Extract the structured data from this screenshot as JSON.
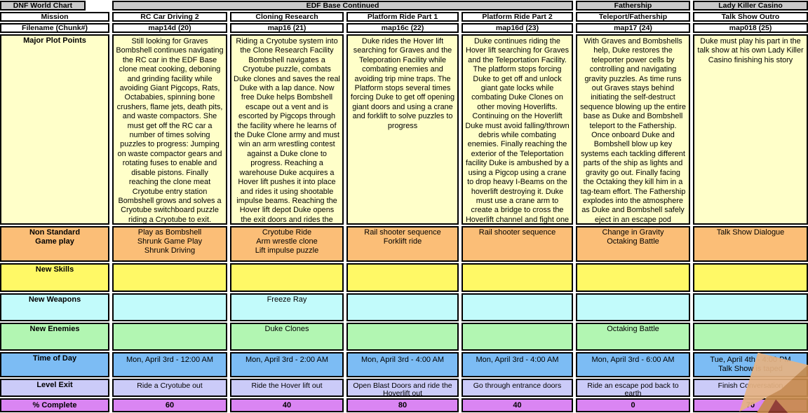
{
  "title": "DNF World Chart",
  "group_headers": {
    "edf": "EDF Base Continued",
    "fathership": "Fathership",
    "lady_killer": "Lady Killer Casino"
  },
  "row_labels": {
    "mission": "Mission",
    "filename": "Filename (Chunk#)",
    "plot": "Major Plot Points",
    "gameplay": "Non Standard\nGame play",
    "skills": "New Skills",
    "weapons": "New Weapons",
    "enemies": "New Enemies",
    "time": "Time of Day",
    "exit": "Level Exit",
    "complete": "% Complete"
  },
  "row_colors": {
    "group_header": "#c9c9c9",
    "plot": "#ffffc9",
    "gameplay": "#fbbe77",
    "skills": "#fff966",
    "weapons": "#c2fbfb",
    "enemies": "#b2f6b2",
    "time": "#7cbcf4",
    "exit": "#cbcbf8",
    "complete": "#da85f3"
  },
  "columns": [
    {
      "mission": "RC Car Driving 2",
      "filename": "map14d  (20)",
      "plot": "Still looking for Graves Bombshell continues navigating the RC car in the EDF Base clone meat cooking, deboning and grinding facility while avoiding Giant Pigcops, Rats, Octababies, spinning bone crushers, flame jets, death pits, and waste compactors. She must get off the RC car a number of times solving puzzles to progress: Jumping on waste compactor gears and rotating fuses to enable and disable pistons. Finally reaching the clone meat Cryotube entry station Bombshell grows and solves a Cryotube switchboard puzzle riding a Cryotube to exit.",
      "gameplay": [
        "Play as Bombshell",
        "Shrunk Game Play",
        "Shrunk Driving"
      ],
      "skills": "",
      "weapons": "",
      "enemies": "",
      "time": "Mon, April 3rd - 12:00 AM",
      "exit": "Ride a Cryotube out",
      "complete": "60"
    },
    {
      "mission": "Cloning Research",
      "filename": "map16  (21)",
      "plot": "Riding a Cryotube system into the Clone Research Facility Bombshell navigates a Cryotube puzzle, combats Duke clones and saves the real Duke with a lap dance. Now free Duke helps Bombshell escape out a vent and is escorted by Pigcops through the facility where he learns of the Duke Clone army and must win an arm wrestling contest against a Duke clone to progress. Reaching a warehouse Duke acquires a Hover lift pushes it into place and rides it using shootable impulse beams. Reaching the Hover lift depot Duke opens the exit doors and rides the Hover lift out as the alarms sound and the Clones are now aware he is an imposter.",
      "gameplay": [
        "Cryotube Ride",
        "Arm wrestle clone",
        "Lift impulse puzzle"
      ],
      "skills": "",
      "weapons": "Freeze Ray",
      "enemies": "Duke Clones",
      "time": "Mon, April 3rd - 2:00 AM",
      "exit": "Ride the Hover lift out",
      "complete": "40"
    },
    {
      "mission": "Platform Ride Part 1",
      "filename": "map16c  (22)",
      "plot": "Duke rides the Hover lift searching for Graves and the Teleporation Facility while combating enemies and avoiding trip mine traps. The Platform stops several times forcing Duke to get off opening giant doors and using a crane and forklift to solve puzzles to progress",
      "gameplay": [
        "Rail shooter sequence",
        "Forklift ride"
      ],
      "skills": "",
      "weapons": "",
      "enemies": "",
      "time": "Mon, April 3rd - 4:00 AM",
      "exit": "Open Blast Doors and ride the Hoverlift out",
      "complete": "80"
    },
    {
      "mission": "Platform Ride Part 2",
      "filename": "map16d  (23)",
      "plot": "Duke continues riding the Hover lift searching for Graves and the Teleportation Facility. The platform stops forcing Duke to get off and unlock giant gate locks while combating Duke Clones on other moving Hoverlifts. Continuing on the Hoverlift Duke must avoid falling/thrown debris while combating enemies. Finally reaching the exterior of the Teleportation facility Duke is ambushed by a using a Pigcop using a crane to drop heavy I-Beams on the hoverlift destroying it. Duke must use a crane arm to create a bridge to cross the Hoverlift channel and fight one last battle to finally reach the Teleportation Facility entrance",
      "gameplay": [
        "Rail shooter sequence"
      ],
      "skills": "",
      "weapons": "",
      "enemies": "",
      "time": "Mon, April 3rd - 4:00 AM",
      "exit": "Go through entrance doors",
      "complete": "40"
    },
    {
      "mission": "Teleport/Fathership",
      "filename": "map17  (24)",
      "plot": "With Graves and Bombshells help, Duke restores the teleporter power cells by controlling and navigating gravity puzzles. As time runs out Graves stays behind initiating the self-destruct sequence blowing up the entire base as Duke and Bombshell teleport to the Fathership. Once onboard Duke and Bombshell blow up key systems each tackling different parts of the ship as lights and gravity go out. Finally facing the Octaking they kill him in a tag-team effort. The Fathership explodes into the atmosphere as Duke and Bombshell safely eject in an escape pod returning to a war torn Earth with the co-ordinates to the alien world.",
      "gameplay": [
        "Change in Gravity",
        "Octaking Battle"
      ],
      "skills": "",
      "weapons": "",
      "enemies": "Octaking Battle",
      "time": "Mon, April 3rd - 6:00 AM",
      "exit": "Ride an escape pod back to earth",
      "complete": "0"
    },
    {
      "mission": "Talk Show Outro",
      "filename": "map018  (25)",
      "plot": "Duke must play his part in the talk show at his own Lady Killer Casino finishing his story",
      "gameplay": [
        "Talk Show Dialogue"
      ],
      "skills": "",
      "weapons": "",
      "enemies": "",
      "time": [
        "Tue, April 4th - 4:00 PM",
        "Talk Show is taped"
      ],
      "exit": "Finish Conversation",
      "complete": "70"
    }
  ]
}
